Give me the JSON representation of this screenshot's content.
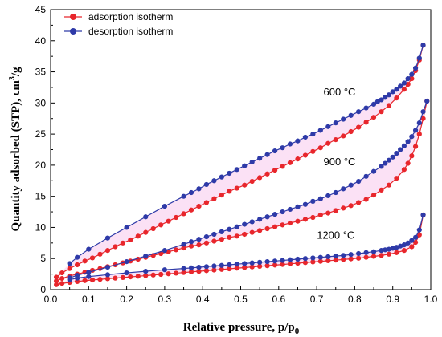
{
  "chart_data": {
    "type": "line",
    "xlabel": "Relative pressure, p/p",
    "xlabel_sub": "0",
    "ylabel": "Quantity adsorbed (STP), cm",
    "ylabel_sup": "3",
    "ylabel_tail": "/g",
    "xlim": [
      0,
      1.0
    ],
    "ylim": [
      0,
      45
    ],
    "x_ticks": [
      0.0,
      0.1,
      0.2,
      0.3,
      0.4,
      0.5,
      0.6,
      0.7,
      0.8,
      0.9,
      1.0
    ],
    "x_tick_labels": [
      "0.0",
      "0.1",
      "0.2",
      "0.3",
      "0.4",
      "0.5",
      "0.6",
      "0.7",
      "0.8",
      "0.9",
      "1.0"
    ],
    "y_ticks": [
      0,
      5,
      10,
      15,
      20,
      25,
      30,
      35,
      40,
      45
    ],
    "y_tick_labels": [
      "0",
      "5",
      "10",
      "15",
      "20",
      "25",
      "30",
      "35",
      "40",
      "45"
    ],
    "grid": false,
    "legend_position": "top-left",
    "legend": [
      {
        "label": "adsorption isotherm",
        "color": "#e8262c"
      },
      {
        "label": "desorption isotherm",
        "color": "#2e3aa8"
      }
    ],
    "annotations": [
      {
        "text": "600 °C",
        "x": 0.76,
        "y": 31.2
      },
      {
        "text": "900 °C",
        "x": 0.76,
        "y": 20.0
      },
      {
        "text": "1200 °C",
        "x": 0.75,
        "y": 8.2
      }
    ],
    "series": [
      {
        "temperature": "600 °C",
        "kind": "adsorption",
        "color": "#e8262c",
        "x": [
          0.015,
          0.03,
          0.05,
          0.07,
          0.09,
          0.11,
          0.13,
          0.15,
          0.17,
          0.19,
          0.21,
          0.23,
          0.25,
          0.27,
          0.29,
          0.31,
          0.33,
          0.35,
          0.37,
          0.39,
          0.41,
          0.43,
          0.45,
          0.47,
          0.49,
          0.51,
          0.53,
          0.55,
          0.57,
          0.59,
          0.61,
          0.63,
          0.65,
          0.67,
          0.69,
          0.71,
          0.73,
          0.75,
          0.77,
          0.79,
          0.81,
          0.83,
          0.85,
          0.87,
          0.89,
          0.91,
          0.93,
          0.94,
          0.95,
          0.96,
          0.97,
          0.98
        ],
        "y": [
          2.0,
          2.7,
          3.4,
          4.0,
          4.6,
          5.1,
          5.7,
          6.3,
          6.9,
          7.5,
          8.0,
          8.6,
          9.2,
          9.8,
          10.4,
          11.0,
          11.6,
          12.2,
          12.8,
          13.4,
          14.0,
          14.6,
          15.2,
          15.8,
          16.3,
          16.8,
          17.4,
          18.0,
          18.6,
          19.2,
          19.8,
          20.4,
          21.0,
          21.6,
          22.2,
          22.8,
          23.5,
          24.1,
          24.7,
          25.4,
          26.1,
          26.9,
          27.7,
          28.6,
          29.6,
          30.8,
          32.2,
          33.0,
          33.9,
          35.2,
          36.9,
          39.3
        ]
      },
      {
        "temperature": "600 °C",
        "kind": "desorption",
        "color": "#2e3aa8",
        "x": [
          0.98,
          0.97,
          0.96,
          0.95,
          0.94,
          0.93,
          0.92,
          0.91,
          0.9,
          0.89,
          0.88,
          0.87,
          0.86,
          0.85,
          0.83,
          0.81,
          0.79,
          0.77,
          0.75,
          0.73,
          0.71,
          0.69,
          0.67,
          0.65,
          0.63,
          0.61,
          0.59,
          0.57,
          0.55,
          0.53,
          0.51,
          0.49,
          0.47,
          0.45,
          0.43,
          0.41,
          0.39,
          0.37,
          0.35,
          0.3,
          0.25,
          0.2,
          0.15,
          0.1,
          0.07,
          0.05
        ],
        "y": [
          39.3,
          37.2,
          35.6,
          34.6,
          33.9,
          33.2,
          32.7,
          32.2,
          31.8,
          31.3,
          30.9,
          30.5,
          30.2,
          29.8,
          29.2,
          28.6,
          28.0,
          27.4,
          26.8,
          26.2,
          25.6,
          25.0,
          24.5,
          23.9,
          23.4,
          22.8,
          22.3,
          21.7,
          21.1,
          20.5,
          19.9,
          19.3,
          18.7,
          18.1,
          17.5,
          16.9,
          16.2,
          15.6,
          15.0,
          13.4,
          11.7,
          10.0,
          8.3,
          6.5,
          5.2,
          4.2
        ]
      },
      {
        "temperature": "900 °C",
        "kind": "adsorption",
        "color": "#e8262c",
        "x": [
          0.015,
          0.03,
          0.05,
          0.07,
          0.09,
          0.11,
          0.13,
          0.15,
          0.17,
          0.19,
          0.21,
          0.23,
          0.25,
          0.27,
          0.29,
          0.31,
          0.33,
          0.35,
          0.37,
          0.39,
          0.41,
          0.43,
          0.45,
          0.47,
          0.49,
          0.51,
          0.53,
          0.55,
          0.57,
          0.59,
          0.61,
          0.63,
          0.65,
          0.67,
          0.69,
          0.71,
          0.73,
          0.75,
          0.77,
          0.79,
          0.81,
          0.83,
          0.85,
          0.87,
          0.89,
          0.91,
          0.93,
          0.94,
          0.95,
          0.96,
          0.97,
          0.98,
          0.99
        ],
        "y": [
          1.4,
          1.8,
          2.2,
          2.5,
          2.8,
          3.1,
          3.4,
          3.7,
          4.0,
          4.3,
          4.6,
          4.9,
          5.2,
          5.5,
          5.8,
          6.1,
          6.4,
          6.7,
          7.0,
          7.2,
          7.5,
          7.8,
          8.1,
          8.4,
          8.6,
          8.9,
          9.2,
          9.5,
          9.8,
          10.1,
          10.4,
          10.7,
          11.0,
          11.3,
          11.6,
          12.0,
          12.3,
          12.7,
          13.1,
          13.5,
          14.0,
          14.5,
          15.2,
          16.0,
          16.8,
          17.9,
          19.3,
          20.3,
          21.5,
          23.0,
          25.0,
          27.5,
          30.3
        ]
      },
      {
        "temperature": "900 °C",
        "kind": "desorption",
        "color": "#2e3aa8",
        "x": [
          0.99,
          0.98,
          0.97,
          0.96,
          0.95,
          0.94,
          0.93,
          0.92,
          0.91,
          0.9,
          0.89,
          0.88,
          0.87,
          0.85,
          0.83,
          0.81,
          0.79,
          0.77,
          0.75,
          0.73,
          0.71,
          0.69,
          0.67,
          0.65,
          0.63,
          0.61,
          0.59,
          0.57,
          0.55,
          0.53,
          0.51,
          0.49,
          0.47,
          0.45,
          0.43,
          0.41,
          0.39,
          0.37,
          0.35,
          0.3,
          0.25,
          0.2,
          0.15,
          0.1,
          0.07,
          0.05
        ],
        "y": [
          30.3,
          28.6,
          26.8,
          25.6,
          24.6,
          23.8,
          23.1,
          22.5,
          21.9,
          21.3,
          20.8,
          20.3,
          19.8,
          19.0,
          18.2,
          17.4,
          16.8,
          16.2,
          15.6,
          15.1,
          14.6,
          14.2,
          13.7,
          13.3,
          12.9,
          12.5,
          12.1,
          11.7,
          11.3,
          10.9,
          10.5,
          10.1,
          9.7,
          9.3,
          8.9,
          8.5,
          8.1,
          7.7,
          7.3,
          6.3,
          5.4,
          4.5,
          3.6,
          2.8,
          2.3,
          1.9
        ]
      },
      {
        "temperature": "1200 °C",
        "kind": "adsorption",
        "color": "#e8262c",
        "x": [
          0.015,
          0.03,
          0.05,
          0.07,
          0.09,
          0.11,
          0.13,
          0.15,
          0.17,
          0.19,
          0.21,
          0.23,
          0.25,
          0.27,
          0.29,
          0.31,
          0.33,
          0.35,
          0.37,
          0.39,
          0.41,
          0.43,
          0.45,
          0.47,
          0.49,
          0.51,
          0.53,
          0.55,
          0.57,
          0.59,
          0.61,
          0.63,
          0.65,
          0.67,
          0.69,
          0.71,
          0.73,
          0.75,
          0.77,
          0.79,
          0.81,
          0.83,
          0.85,
          0.87,
          0.89,
          0.91,
          0.93,
          0.95,
          0.96,
          0.97,
          0.98
        ],
        "y": [
          0.8,
          1.0,
          1.15,
          1.3,
          1.45,
          1.55,
          1.65,
          1.75,
          1.85,
          1.95,
          2.05,
          2.15,
          2.25,
          2.35,
          2.45,
          2.55,
          2.65,
          2.75,
          2.85,
          2.95,
          3.05,
          3.15,
          3.25,
          3.35,
          3.45,
          3.55,
          3.65,
          3.75,
          3.85,
          3.95,
          4.05,
          4.15,
          4.25,
          4.35,
          4.45,
          4.55,
          4.65,
          4.75,
          4.85,
          4.95,
          5.05,
          5.2,
          5.35,
          5.5,
          5.7,
          5.95,
          6.3,
          6.9,
          7.6,
          8.8,
          12.0
        ]
      },
      {
        "temperature": "1200 °C",
        "kind": "desorption",
        "color": "#2e3aa8",
        "x": [
          0.98,
          0.97,
          0.96,
          0.95,
          0.94,
          0.93,
          0.92,
          0.91,
          0.9,
          0.89,
          0.88,
          0.87,
          0.85,
          0.83,
          0.81,
          0.79,
          0.77,
          0.75,
          0.73,
          0.71,
          0.69,
          0.67,
          0.65,
          0.63,
          0.61,
          0.59,
          0.57,
          0.55,
          0.53,
          0.51,
          0.49,
          0.47,
          0.45,
          0.43,
          0.41,
          0.39,
          0.37,
          0.35,
          0.3,
          0.25,
          0.2,
          0.15,
          0.1,
          0.07,
          0.05
        ],
        "y": [
          12.0,
          9.6,
          8.4,
          7.9,
          7.5,
          7.2,
          7.0,
          6.8,
          6.65,
          6.5,
          6.4,
          6.3,
          6.1,
          5.95,
          5.8,
          5.65,
          5.5,
          5.4,
          5.3,
          5.2,
          5.1,
          5.0,
          4.9,
          4.8,
          4.7,
          4.6,
          4.5,
          4.4,
          4.3,
          4.2,
          4.1,
          4.0,
          3.9,
          3.8,
          3.7,
          3.6,
          3.5,
          3.4,
          3.2,
          2.95,
          2.7,
          2.4,
          2.1,
          1.85,
          1.6
        ]
      }
    ]
  }
}
